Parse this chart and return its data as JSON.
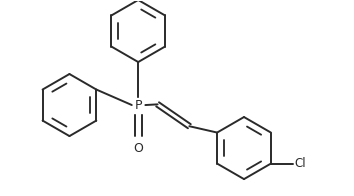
{
  "background_color": "#ffffff",
  "line_color": "#2a2a2a",
  "line_width": 1.4,
  "P_label": "P",
  "O_label": "O",
  "Cl_label": "Cl",
  "figsize": [
    3.54,
    1.96
  ],
  "dpi": 100,
  "xlim": [
    0,
    10
  ],
  "ylim": [
    0,
    5.5
  ]
}
